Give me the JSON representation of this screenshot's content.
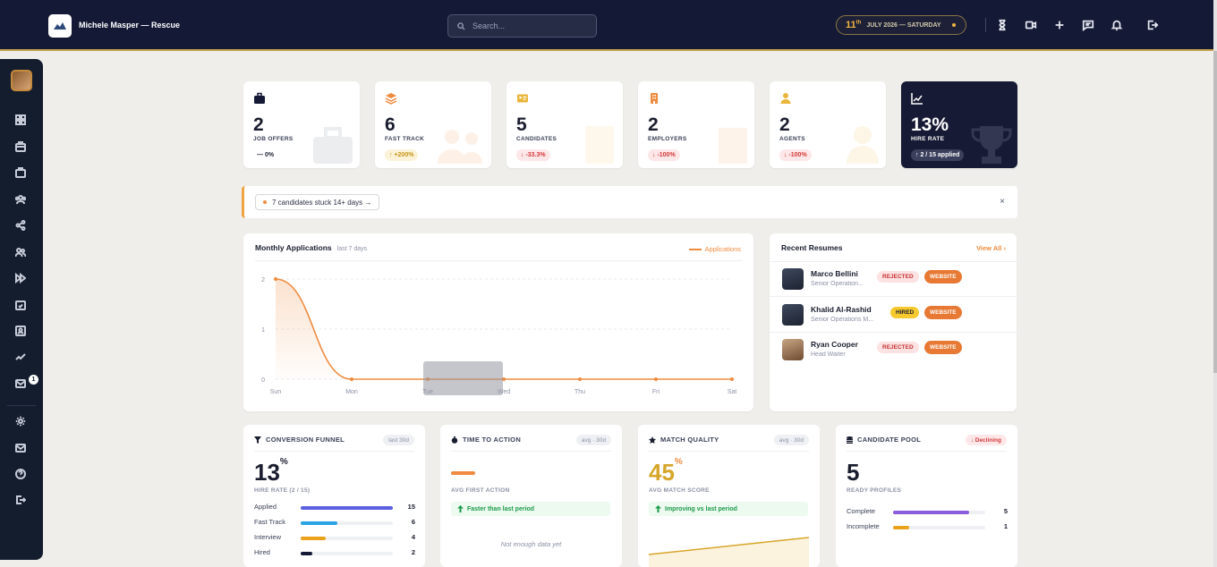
{
  "header": {
    "brand_name": "Michele Masper — Rescue",
    "search_placeholder": "Search...",
    "date_day": "11",
    "date_suffix": "th",
    "date_text": "JULY 2026 — SATURDAY"
  },
  "sidebar": {
    "message_badge": "1"
  },
  "stats": [
    {
      "value": "2",
      "label": "JOB OFFERS",
      "delta": "— 0%"
    },
    {
      "value": "6",
      "label": "FAST TRACK",
      "delta": "↑ +200%"
    },
    {
      "value": "5",
      "label": "CANDIDATES",
      "delta": "↓ -33.3%"
    },
    {
      "value": "2",
      "label": "EMPLOYERS",
      "delta": "↓ -100%"
    },
    {
      "value": "2",
      "label": "AGENTS",
      "delta": "↓ -100%"
    },
    {
      "value": "13%",
      "label": "HIRE RATE",
      "delta": "↑ 2 / 15 applied"
    }
  ],
  "alert": {
    "chip_text": "7 candidates stuck 14+ days →",
    "close": "×"
  },
  "monthly": {
    "title": "Monthly Applications",
    "subtitle": "last 7 days",
    "legend": "Applications"
  },
  "chart_data": {
    "type": "area",
    "title": "Monthly Applications",
    "categories": [
      "Sun",
      "Mon",
      "Tue",
      "Wed",
      "Thu",
      "Fri",
      "Sat"
    ],
    "series": [
      {
        "name": "Applications",
        "values": [
          2,
          0,
          0,
          0,
          0,
          0,
          0
        ]
      }
    ],
    "yticks": [
      "0",
      "1",
      "2"
    ],
    "ylim": [
      0,
      2
    ],
    "grid": true,
    "legend": "top-right",
    "color": "#ef8b3f"
  },
  "resumes": {
    "title": "Recent Resumes",
    "view_all": "View All ›",
    "items": [
      {
        "name": "Marco Bellini",
        "role": "Senior Operation...",
        "status": "REJECTED",
        "source": "WEBSITE"
      },
      {
        "name": "Khalid Al-Rashid",
        "role": "Senior Operations M...",
        "status": "HIRED",
        "source": "WEBSITE"
      },
      {
        "name": "Ryan Cooper",
        "role": "Head Waiter",
        "status": "REJECTED",
        "source": "WEBSITE"
      }
    ]
  },
  "funnel": {
    "title": "CONVERSION FUNNEL",
    "tag": "last 30d",
    "value": "13",
    "unit": "%",
    "sub": "HIRE RATE (2 / 15)",
    "rows": [
      {
        "label": "Applied",
        "count": "15",
        "fraction": 1.0,
        "color": "#5b5fe0"
      },
      {
        "label": "Fast Track",
        "count": "6",
        "fraction": 0.4,
        "color": "#2aa3e6"
      },
      {
        "label": "Interview",
        "count": "4",
        "fraction": 0.27,
        "color": "#e9a21a"
      },
      {
        "label": "Hired",
        "count": "2",
        "fraction": 0.13,
        "color": "#141936"
      }
    ]
  },
  "time_to_action": {
    "title": "TIME TO ACTION",
    "tag": "avg · 30d",
    "sub": "AVG FIRST ACTION",
    "status": "Faster than last period",
    "empty": "Not enough data yet"
  },
  "match_quality": {
    "title": "MATCH QUALITY",
    "tag": "avg · 30d",
    "value": "45",
    "unit": "%",
    "sub": "AVG MATCH SCORE",
    "status": "Improving vs last period"
  },
  "pool": {
    "title": "CANDIDATE POOL",
    "tag": "↓ Declining",
    "value": "5",
    "sub": "READY PROFILES",
    "rows": [
      {
        "label": "Complete",
        "count": "5",
        "fraction": 0.83,
        "color": "#8b5cdb"
      },
      {
        "label": "Incomplete",
        "count": "1",
        "fraction": 0.17,
        "color": "#e9a21a"
      }
    ]
  }
}
